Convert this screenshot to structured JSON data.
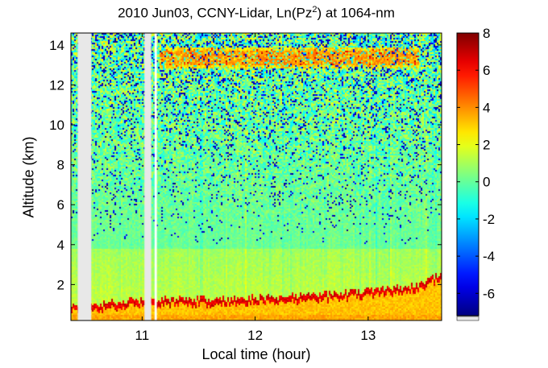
{
  "chart_data": {
    "type": "heatmap",
    "title": "2010 Jun03, CCNY-Lidar, Ln(Pz",
    "title_sup": "2",
    "title_suffix": ") at 1064-nm",
    "xlabel": "Local time (hour)",
    "ylabel": "Altitude (km)",
    "xlim": [
      10.37,
      13.65
    ],
    "ylim": [
      0.2,
      14.6
    ],
    "xticks": [
      11,
      12,
      13
    ],
    "yticks": [
      2,
      4,
      6,
      8,
      10,
      12,
      14
    ],
    "colorbar": {
      "min": -7.2,
      "max": 8,
      "ticks": [
        8,
        6,
        4,
        2,
        0,
        -2,
        -4,
        -6
      ]
    },
    "colormap": "jet",
    "gaps": [
      [
        10.43,
        10.55
      ],
      [
        11.02,
        11.08
      ],
      [
        11.11,
        11.13
      ]
    ],
    "features": {
      "boundary_layer_top_km": [
        {
          "t": 10.55,
          "z": 0.85
        },
        {
          "t": 11.0,
          "z": 1.1
        },
        {
          "t": 11.5,
          "z": 1.15
        },
        {
          "t": 12.0,
          "z": 1.2
        },
        {
          "t": 12.5,
          "z": 1.35
        },
        {
          "t": 13.0,
          "z": 1.55
        },
        {
          "t": 13.4,
          "z": 1.8
        },
        {
          "t": 13.65,
          "z": 2.4
        }
      ],
      "boundary_layer_value": 3.2,
      "boundary_layer_edge_value": 6.5,
      "cirrus_layer": {
        "t_start": 11.15,
        "t_end": 13.45,
        "z_bottom": 12.8,
        "z_top": 13.9,
        "value": 3.8
      },
      "background_value": 0.3,
      "noise_start_km": 4.0
    }
  }
}
